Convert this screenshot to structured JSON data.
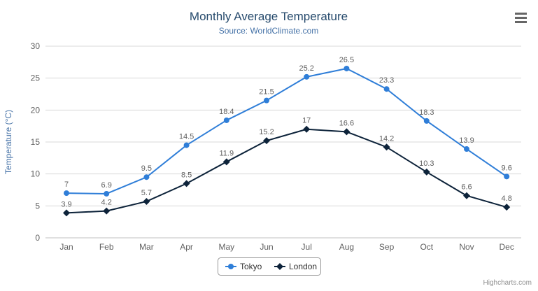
{
  "title": "Monthly Average Temperature",
  "subtitle": "Source: WorldClimate.com",
  "credits": "Highcharts.com",
  "colors": {
    "title": "#274b6d",
    "subtitle": "#4572A7",
    "axis_label": "#606060",
    "grid": "#D8D8D8",
    "axis_line": "#C0C0C0",
    "legend_border": "#999999",
    "background": "#ffffff"
  },
  "icons": {
    "menu": "hamburger-menu-icon"
  },
  "chart_data": {
    "type": "line",
    "categories": [
      "Jan",
      "Feb",
      "Mar",
      "Apr",
      "May",
      "Jun",
      "Jul",
      "Aug",
      "Sep",
      "Oct",
      "Nov",
      "Dec"
    ],
    "series": [
      {
        "name": "Tokyo",
        "color": "#2f7ed8",
        "marker": "circle",
        "values": [
          7,
          6.9,
          9.5,
          14.5,
          18.4,
          21.5,
          25.2,
          26.5,
          23.3,
          18.3,
          13.9,
          9.6
        ]
      },
      {
        "name": "London",
        "color": "#0d233a",
        "marker": "diamond",
        "values": [
          3.9,
          4.2,
          5.7,
          8.5,
          11.9,
          15.2,
          17,
          16.6,
          14.2,
          10.3,
          6.6,
          4.8
        ]
      }
    ],
    "title": "Monthly Average Temperature",
    "xlabel": "",
    "ylabel": "Temperature (°C)",
    "ylim": [
      0,
      30
    ],
    "ytick_interval": 5,
    "grid": true,
    "legend_position": "bottom",
    "data_labels": true
  }
}
